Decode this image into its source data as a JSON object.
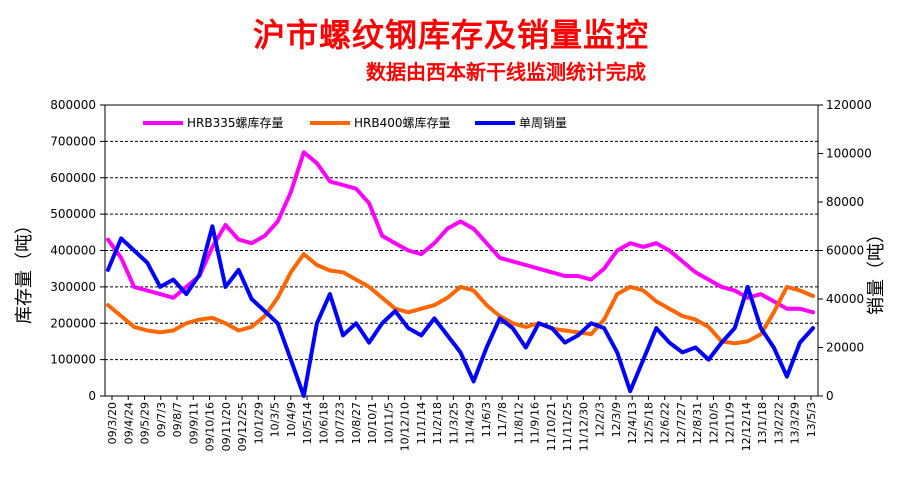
{
  "header": {
    "title": "沪市螺纹钢库存及销量监控",
    "subtitle": "数据由西本新干线监测统计完成"
  },
  "chart_data": {
    "type": "line",
    "title": "沪市螺纹钢库存及销量监控",
    "subtitle": "数据由西本新干线监测统计完成",
    "ylabel_left": "库存量（吨）",
    "ylabel_right": "销量（吨）",
    "ylim_left": [
      0,
      800000
    ],
    "ylim_right": [
      0,
      120000
    ],
    "yticks_left": [
      "800000",
      "700000",
      "600000",
      "500000",
      "400000",
      "300000",
      "200000",
      "100000",
      "0"
    ],
    "yticks_right": [
      "120000",
      "100000",
      "80000",
      "60000",
      "40000",
      "20000",
      "0"
    ],
    "grid": true,
    "legend_placement": "top",
    "x_tick_labels": [
      "09/3/20",
      "09/4/24",
      "09/5/29",
      "09/7/3",
      "09/8/7",
      "09/9/11",
      "09/10/16",
      "09/11/20",
      "09/12/25",
      "10/1/29",
      "10/3/5",
      "10/4/9",
      "10/5/14",
      "10/6/18",
      "10/7/23",
      "10/8/27",
      "10/10/1",
      "10/11/5",
      "10/12/10",
      "11/1/14",
      "11/2/18",
      "11/3/25",
      "11/4/29",
      "11/6/3",
      "11/7/8",
      "11/8/12",
      "11/9/16",
      "11/10/21",
      "11/11/25",
      "11/12/30",
      "12/2/3",
      "12/3/9",
      "12/4/13",
      "12/5/18",
      "12/6/22",
      "12/7/27",
      "12/8/31",
      "12/10/5",
      "12/11/9",
      "12/12/14",
      "13/1/18",
      "13/2/22",
      "13/3/29",
      "13/5/3"
    ],
    "series": [
      {
        "name": "HRB335螺库存量",
        "color": "#ff00ff",
        "axis": "left",
        "values": [
          430000,
          380000,
          300000,
          290000,
          280000,
          270000,
          300000,
          330000,
          410000,
          470000,
          430000,
          420000,
          440000,
          480000,
          560000,
          670000,
          640000,
          590000,
          580000,
          570000,
          530000,
          440000,
          420000,
          400000,
          390000,
          420000,
          460000,
          480000,
          460000,
          420000,
          380000,
          370000,
          360000,
          350000,
          340000,
          330000,
          330000,
          320000,
          350000,
          400000,
          420000,
          410000,
          420000,
          400000,
          370000,
          340000,
          320000,
          300000,
          290000,
          270000,
          280000,
          260000,
          240000,
          240000,
          230000
        ]
      },
      {
        "name": "HRB400螺库存量",
        "color": "#ff6600",
        "axis": "left",
        "values": [
          250000,
          220000,
          190000,
          180000,
          175000,
          180000,
          200000,
          210000,
          215000,
          200000,
          180000,
          190000,
          220000,
          270000,
          340000,
          390000,
          360000,
          345000,
          340000,
          320000,
          300000,
          270000,
          240000,
          230000,
          240000,
          250000,
          270000,
          300000,
          290000,
          250000,
          220000,
          200000,
          190000,
          200000,
          185000,
          180000,
          175000,
          170000,
          210000,
          280000,
          300000,
          290000,
          260000,
          240000,
          220000,
          210000,
          190000,
          150000,
          145000,
          150000,
          170000,
          230000,
          300000,
          290000,
          275000
        ]
      },
      {
        "name": "单周销量",
        "color": "#0000ff",
        "axis": "right",
        "values": [
          52000,
          65000,
          60000,
          55000,
          45000,
          48000,
          42000,
          50000,
          70000,
          45000,
          52000,
          40000,
          35000,
          30000,
          15000,
          0,
          30000,
          42000,
          25000,
          30000,
          22000,
          30000,
          35000,
          28000,
          25000,
          32000,
          25000,
          18000,
          6000,
          20000,
          32000,
          28000,
          20000,
          30000,
          28000,
          22000,
          25000,
          30000,
          28000,
          18000,
          2000,
          15000,
          28000,
          22000,
          18000,
          20000,
          15000,
          22000,
          28000,
          45000,
          28000,
          20000,
          8000,
          22000,
          28000
        ]
      }
    ]
  }
}
